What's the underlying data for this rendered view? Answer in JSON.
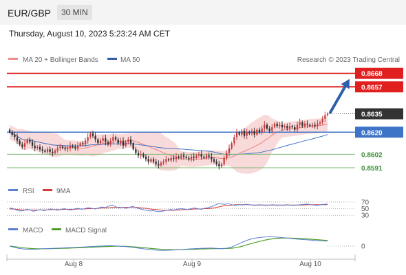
{
  "header": {
    "pair": "EUR/GBP",
    "interval": "30 MIN"
  },
  "timestamp": "Thursday, August 10, 2023 5:23:24 AM CET",
  "credit": "Research © 2023 Trading Central",
  "colors": {
    "resistance": "#e0201f",
    "current": "#333333",
    "pivot": "#3d74c8",
    "support": "#7ab872",
    "arrow": "#2d5faa",
    "bull": "#c33b3b",
    "bear": "#2f2f2f",
    "bollinger": "#f4b6b6",
    "ma20": "#e98383",
    "ma50": "#3d74c8",
    "rsi": "#5b7fd4",
    "rsi_ma": "#d63a3a",
    "macd": "#5b7fd4",
    "macd_signal": "#4f9e2b"
  },
  "chart_data": [
    {
      "type": "candlestick",
      "title": "",
      "legend": [
        {
          "name": "MA 20 + Bollinger Bands",
          "color": "#e98383"
        },
        {
          "name": "MA 50",
          "color": "#3d74c8"
        }
      ],
      "x_ticks": [
        "Aug 8",
        "Aug 9",
        "Aug 10"
      ],
      "ylim": [
        0.8582,
        0.8674
      ],
      "levels": [
        {
          "label": "0.8668",
          "value": 0.8668,
          "role": "resistance"
        },
        {
          "label": "0.8657",
          "value": 0.8657,
          "role": "resistance"
        },
        {
          "label": "0.8635",
          "value": 0.8635,
          "role": "current"
        },
        {
          "label": "0.8620",
          "value": 0.862,
          "role": "pivot"
        },
        {
          "label": "0.8602",
          "value": 0.8602,
          "role": "support"
        },
        {
          "label": "0.8591",
          "value": 0.8591,
          "role": "support"
        }
      ],
      "close": [
        0.862,
        0.8618,
        0.8616,
        0.8613,
        0.861,
        0.8608,
        0.8611,
        0.8614,
        0.8612,
        0.8609,
        0.8607,
        0.8608,
        0.8606,
        0.8605,
        0.8604,
        0.8606,
        0.8604,
        0.8603,
        0.8605,
        0.8607,
        0.8608,
        0.8607,
        0.8606,
        0.8607,
        0.8609,
        0.8608,
        0.8607,
        0.8609,
        0.8611,
        0.861,
        0.8613,
        0.8616,
        0.8619,
        0.8617,
        0.8614,
        0.8611,
        0.8613,
        0.8615,
        0.8612,
        0.861,
        0.8613,
        0.8616,
        0.8614,
        0.8611,
        0.8613,
        0.8609,
        0.8612,
        0.8614,
        0.8611,
        0.8606,
        0.8603,
        0.8601,
        0.8602,
        0.86,
        0.8598,
        0.8596,
        0.8598,
        0.8596,
        0.8594,
        0.8593,
        0.8595,
        0.8596,
        0.8598,
        0.8597,
        0.8599,
        0.8598,
        0.86,
        0.8599,
        0.8601,
        0.86,
        0.8599,
        0.8598,
        0.86,
        0.8599,
        0.8601,
        0.8602,
        0.86,
        0.8599,
        0.8601,
        0.86,
        0.8598,
        0.8596,
        0.8594,
        0.8592,
        0.8594,
        0.8599,
        0.8603,
        0.8607,
        0.8611,
        0.8616,
        0.862,
        0.8618,
        0.8621,
        0.8617,
        0.862,
        0.8619,
        0.8621,
        0.8618,
        0.8622,
        0.862,
        0.8623,
        0.8626,
        0.8623,
        0.8621,
        0.8624,
        0.8627,
        0.8625,
        0.8626,
        0.8624,
        0.8625,
        0.8623,
        0.8625,
        0.8624,
        0.8622,
        0.8626,
        0.8628,
        0.8625,
        0.8627,
        0.8626,
        0.8625,
        0.8626,
        0.8625,
        0.8627,
        0.8628,
        0.8631,
        0.8634,
        0.8635
      ],
      "arrow_target": 0.8668
    },
    {
      "type": "line",
      "title": "",
      "legend": [
        {
          "name": "RSI",
          "color": "#5b7fd4"
        },
        {
          "name": "9MA",
          "color": "#d63a3a"
        }
      ],
      "y_ticks": [
        "70",
        "50",
        "30"
      ],
      "ylim": [
        20,
        80
      ],
      "rsi": [
        52,
        50,
        46,
        43,
        44,
        48,
        46,
        42,
        45,
        47,
        44,
        46,
        49,
        47,
        45,
        48,
        50,
        47,
        46,
        49,
        51,
        48,
        50,
        53,
        51,
        49,
        52,
        55,
        53,
        58,
        61,
        56,
        52,
        55,
        51,
        54,
        57,
        53,
        50,
        47,
        45,
        43,
        44,
        42,
        41,
        43,
        45,
        47,
        46,
        48,
        50,
        49,
        47,
        50,
        52,
        50,
        48,
        51,
        53,
        56,
        60,
        65,
        64,
        63,
        65,
        62,
        60,
        62,
        61,
        63,
        62,
        61,
        60,
        62,
        61,
        60,
        61,
        62,
        60,
        61,
        60,
        62,
        61,
        60,
        61,
        62,
        63,
        64,
        62,
        61,
        60,
        62,
        63,
        64
      ],
      "rsi_ma": [
        49,
        49,
        48,
        47,
        46,
        46,
        46,
        46,
        46,
        46,
        46,
        46,
        47,
        47,
        47,
        47,
        48,
        48,
        48,
        48,
        49,
        49,
        49,
        50,
        50,
        50,
        51,
        52,
        52,
        53,
        54,
        54,
        54,
        54,
        54,
        54,
        55,
        54,
        53,
        52,
        51,
        49,
        48,
        47,
        46,
        45,
        45,
        45,
        45,
        46,
        46,
        47,
        47,
        48,
        49,
        49,
        49,
        50,
        50,
        51,
        53,
        55,
        57,
        59,
        60,
        61,
        62,
        62,
        62,
        62,
        62,
        61,
        61,
        61,
        61,
        61,
        61,
        61,
        61,
        61,
        61,
        61,
        61,
        61,
        61,
        61,
        61,
        62,
        62,
        62,
        62,
        62,
        62,
        62
      ]
    },
    {
      "type": "line",
      "title": "",
      "legend": [
        {
          "name": "MACD",
          "color": "#5b7fd4"
        },
        {
          "name": "MACD Signal",
          "color": "#4f9e2b"
        }
      ],
      "y_ticks": [
        "0"
      ],
      "ylim": [
        -0.0007,
        0.0009
      ],
      "macd": [
        0.0,
        -0.0001,
        -0.00018,
        -0.00022,
        -0.00024,
        -0.00023,
        -0.0002,
        -0.00018,
        -0.00016,
        -0.00015,
        -0.00013,
        -0.00011,
        -0.0001,
        -8e-05,
        -6e-05,
        -4e-05,
        -2e-05,
        0.0,
        2e-05,
        3e-05,
        1e-05,
        -1e-05,
        -4e-05,
        -8e-05,
        -0.00013,
        -0.00018,
        -0.00023,
        -0.00027,
        -0.0003,
        -0.00031,
        -0.0003,
        -0.00028,
        -0.00026,
        -0.00023,
        -0.0002,
        -0.00018,
        -0.00016,
        -0.00015,
        -0.00014,
        -0.00016,
        -0.00018,
        -0.00015,
        -5e-05,
        0.00012,
        0.0003,
        0.00045,
        0.00056,
        0.00062,
        0.00066,
        0.00068,
        0.00067,
        0.00064,
        0.0006,
        0.00056,
        0.00052,
        0.00049,
        0.00046,
        0.00043,
        0.0004,
        0.00038,
        0.00036
      ],
      "macd_signal": [
        0.0,
        -4e-05,
        -9e-05,
        -0.00014,
        -0.00017,
        -0.00019,
        -0.00019,
        -0.00019,
        -0.00018,
        -0.00017,
        -0.00016,
        -0.00015,
        -0.00013,
        -0.00012,
        -0.0001,
        -9e-05,
        -7e-05,
        -5e-05,
        -3e-05,
        -2e-05,
        -1e-05,
        -1e-05,
        -2e-05,
        -4e-05,
        -7e-05,
        -0.0001,
        -0.00014,
        -0.00018,
        -0.00021,
        -0.00024,
        -0.00025,
        -0.00026,
        -0.00026,
        -0.00025,
        -0.00024,
        -0.00023,
        -0.00021,
        -0.0002,
        -0.00019,
        -0.00018,
        -0.00018,
        -0.00017,
        -0.00015,
        -9e-05,
        0.0,
        0.00012,
        0.00023,
        0.00033,
        0.00042,
        0.0005,
        0.00055,
        0.00058,
        0.00059,
        0.00058,
        0.00057,
        0.00055,
        0.00053,
        0.0005,
        0.00047,
        0.00044,
        0.00041
      ]
    }
  ]
}
